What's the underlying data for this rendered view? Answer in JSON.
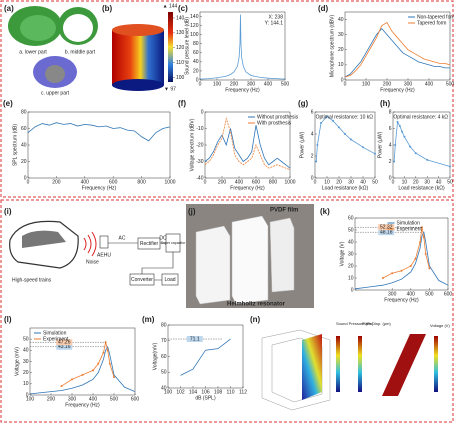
{
  "figure": {
    "panel_labels": [
      "(a)",
      "(b)",
      "(c)",
      "(d)",
      "(e)",
      "(f)",
      "(g)",
      "(h)",
      "(i)",
      "(j)",
      "(k)",
      "(l)",
      "(m)",
      "(n)"
    ],
    "a_texts": [
      "a. lower part",
      "b. middle part",
      "c. upper part"
    ],
    "b_colorbar": {
      "max_label": "▲ 144",
      "min_label": "▼ 97",
      "lim": [
        97,
        144
      ],
      "ticks": [
        100,
        110,
        120,
        130,
        140
      ]
    },
    "i_texts": {
      "train": "High-speed trains",
      "noise": "Noise",
      "aehu": "AEHU",
      "ac": "AC",
      "rectifier": "Rectifier",
      "dc": "DC",
      "supercap": "Super capacitor",
      "converter": "Converter",
      "load": "Load"
    },
    "j_texts": {
      "film": "PVDF film",
      "resonator": "Helmholtz resonator"
    },
    "n_colorbars": [
      "Sound Pressure (Pa)",
      "Plate Disp. (μm)",
      "Voltage (V)"
    ]
  },
  "chart_data": [
    {
      "type": "line",
      "xlabel": "Frequency (Hz)",
      "ylabel": "Sound pressure level (dB)",
      "x": [
        0,
        50,
        100,
        150,
        180,
        200,
        220,
        230,
        235,
        238,
        241,
        245,
        255,
        270,
        300,
        350,
        400,
        450,
        500
      ],
      "values": [
        2,
        3,
        5,
        8,
        12,
        18,
        30,
        50,
        80,
        144.1,
        80,
        50,
        30,
        18,
        10,
        6,
        4,
        3,
        2
      ],
      "color": "#5b9bd5",
      "xlim": [
        0,
        500
      ],
      "xticks": [
        0,
        100,
        200,
        300,
        400,
        500
      ],
      "ylim": [
        0,
        150
      ],
      "yticks": [
        0,
        20,
        40,
        60,
        80,
        100,
        120,
        140
      ],
      "annotations": [
        "X: 238",
        "Y: 144.1"
      ]
    },
    {
      "type": "line",
      "ylabel": "Microphone spectrum (dBV)",
      "xlabel": "Frequency (Hz)",
      "x": [
        0,
        25,
        50,
        75,
        100,
        125,
        150,
        175,
        200,
        225,
        250,
        275,
        300,
        325,
        350,
        375,
        400,
        425,
        450,
        475,
        500
      ],
      "series": [
        {
          "name": "Non-tapered form",
          "color": "#2e75b6",
          "values": [
            2,
            4,
            8,
            12,
            18,
            24,
            30,
            34,
            30,
            26,
            22,
            18,
            16,
            14,
            12,
            11,
            10,
            9,
            9,
            8,
            8
          ]
        },
        {
          "name": "Tapered form",
          "color": "#ed7d31",
          "values": [
            2,
            3,
            6,
            10,
            16,
            22,
            28,
            36,
            38,
            32,
            28,
            24,
            20,
            18,
            16,
            14,
            13,
            12,
            11,
            11,
            10
          ]
        }
      ],
      "xlim": [
        0,
        500
      ],
      "xticks": [
        0,
        100,
        200,
        300,
        400,
        500
      ],
      "ylim": [
        0,
        45
      ],
      "yticks": [
        0,
        10,
        20,
        30,
        40
      ],
      "legend": "upper right"
    },
    {
      "type": "line",
      "ylabel": "SPL spectrum (dB)",
      "xlabel": "Frequency (Hz)",
      "x": [
        0,
        50,
        100,
        150,
        200,
        250,
        300,
        350,
        400,
        450,
        500,
        550,
        600,
        650,
        700,
        750,
        800,
        850,
        900,
        950,
        1000
      ],
      "values": [
        55,
        62,
        66,
        64,
        67,
        65,
        66,
        63,
        65,
        64,
        62,
        63,
        60,
        61,
        58,
        57,
        50,
        45,
        55,
        60,
        62
      ],
      "color": "#2e75b6",
      "xlim": [
        0,
        1000
      ],
      "xticks": [
        0,
        200,
        400,
        600,
        800,
        1000
      ],
      "ylim": [
        0,
        80
      ],
      "yticks": [
        0,
        20,
        40,
        60,
        80
      ]
    },
    {
      "type": "line",
      "ylabel": "Voltage spectrum (dBV)",
      "xlabel": "Frequency (Hz)",
      "x": [
        0,
        50,
        100,
        150,
        200,
        250,
        300,
        350,
        400,
        450,
        500,
        550,
        600,
        650,
        700,
        750,
        800,
        850,
        900,
        950,
        1000
      ],
      "series": [
        {
          "name": "Without prosthesis",
          "color": "#2e75b6",
          "values": [
            -30,
            -28,
            -24,
            -18,
            -14,
            -20,
            -10,
            -22,
            -26,
            -30,
            -28,
            -24,
            -8,
            -20,
            -28,
            -32,
            -30,
            -28,
            -30,
            -32,
            -34
          ]
        },
        {
          "name": "With prosthesis",
          "color": "#ed7d31",
          "dash": true,
          "values": [
            -32,
            -30,
            -26,
            -20,
            -16,
            -4,
            -12,
            -26,
            -30,
            -32,
            -30,
            -28,
            -20,
            -26,
            -32,
            -34,
            -33,
            -32,
            -33,
            -34,
            -35
          ]
        }
      ],
      "xlim": [
        0,
        1000
      ],
      "xticks": [
        0,
        200,
        400,
        600,
        800,
        1000
      ],
      "ylim": [
        -40,
        0
      ],
      "yticks": [
        -40,
        -30,
        -20,
        -10,
        0
      ],
      "legend": "upper right"
    },
    {
      "type": "line",
      "ylabel": "Power (μW)",
      "xlabel": "Load resistance (kΩ)",
      "markers": true,
      "x": [
        1,
        2,
        5,
        10,
        15,
        20,
        25,
        30,
        40,
        50
      ],
      "values": [
        1.5,
        3,
        5,
        5.6,
        5.2,
        4.6,
        4,
        3.5,
        2.8,
        2.2
      ],
      "color": "#5b9bd5",
      "xlim": [
        0,
        50
      ],
      "xticks": [
        0,
        10,
        20,
        30,
        40,
        50
      ],
      "ylim": [
        0,
        6
      ],
      "yticks": [
        0,
        2,
        4,
        6
      ],
      "annotations": [
        "Optimal resistance: 10 kΩ"
      ]
    },
    {
      "type": "line",
      "ylabel": "Power (μW)",
      "xlabel": "Load resistance (kΩ)",
      "markers": true,
      "x": [
        1,
        2,
        4,
        6,
        8,
        10,
        15,
        20,
        30,
        50
      ],
      "values": [
        2,
        4,
        6.8,
        6.3,
        5.6,
        5,
        3.8,
        3,
        2.2,
        1.4
      ],
      "color": "#5b9bd5",
      "xlim": [
        0,
        50
      ],
      "xticks": [
        0,
        10,
        20,
        30,
        40,
        50
      ],
      "ylim": [
        0,
        8
      ],
      "yticks": [
        0,
        2,
        4,
        6,
        8
      ],
      "annotations": [
        "Optimal resistance: 4 kΩ"
      ]
    },
    {
      "type": "line",
      "ylabel": "Voltage (V)",
      "xlabel": "Frequency (Hz)",
      "x": [
        100,
        150,
        200,
        250,
        300,
        350,
        400,
        425,
        450,
        460,
        470,
        480,
        500,
        550,
        600
      ],
      "series": [
        {
          "name": "Simulation",
          "color": "#2e75b6",
          "values": [
            1,
            2,
            3,
            4,
            6,
            9,
            15,
            22,
            35,
            45,
            48.18,
            40,
            20,
            8,
            4
          ]
        },
        {
          "name": "Experiment",
          "color": "#ed7d31",
          "marker": true,
          "values": [
            null,
            null,
            null,
            10,
            14,
            16,
            20,
            26,
            40,
            52.32,
            44,
            30,
            18,
            null,
            null
          ]
        }
      ],
      "peak_labels": [
        48.18,
        52.32
      ],
      "xlim": [
        100,
        600
      ],
      "xticks": [
        300,
        400,
        500,
        600
      ],
      "ylim": [
        0,
        60
      ],
      "yticks": [
        0,
        10,
        20,
        30,
        40,
        50,
        60
      ],
      "legend": "upper center"
    },
    {
      "type": "line",
      "ylabel": "Voltage (mV)",
      "xlabel": "Frequency (Hz)",
      "x": [
        100,
        150,
        200,
        250,
        300,
        350,
        400,
        425,
        450,
        460,
        470,
        480,
        500,
        550,
        600
      ],
      "series": [
        {
          "name": "Simulation",
          "color": "#2e75b6",
          "values": [
            1,
            2,
            3,
            4,
            6,
            9,
            14,
            20,
            32,
            40,
            43.16,
            36,
            18,
            7,
            3
          ]
        },
        {
          "name": "Experiment",
          "color": "#ed7d31",
          "marker": true,
          "values": [
            null,
            null,
            null,
            8,
            14,
            18,
            22,
            28,
            38,
            47.26,
            40,
            28,
            16,
            null,
            null
          ]
        }
      ],
      "peak_labels": [
        43.16,
        47.26
      ],
      "xlim": [
        100,
        600
      ],
      "xticks": [
        100,
        200,
        300,
        400,
        500,
        600
      ],
      "ylim": [
        0,
        60
      ],
      "yticks": [
        0,
        10,
        20,
        30,
        40,
        50
      ],
      "legend": "upper left"
    },
    {
      "type": "line",
      "ylabel": "Voltage(mV)",
      "xlabel": "dB (SPL)",
      "x": [
        102,
        104,
        106,
        108,
        110
      ],
      "values": [
        48,
        52,
        64,
        65,
        71.1
      ],
      "color": "#2e75b6",
      "peak_labels": [
        71.1
      ],
      "xlim": [
        100,
        112
      ],
      "xticks": [
        100,
        102,
        104,
        106,
        108,
        110,
        112
      ],
      "ylim": [
        40,
        80
      ],
      "yticks": [
        40,
        50,
        60,
        70,
        80
      ]
    }
  ]
}
